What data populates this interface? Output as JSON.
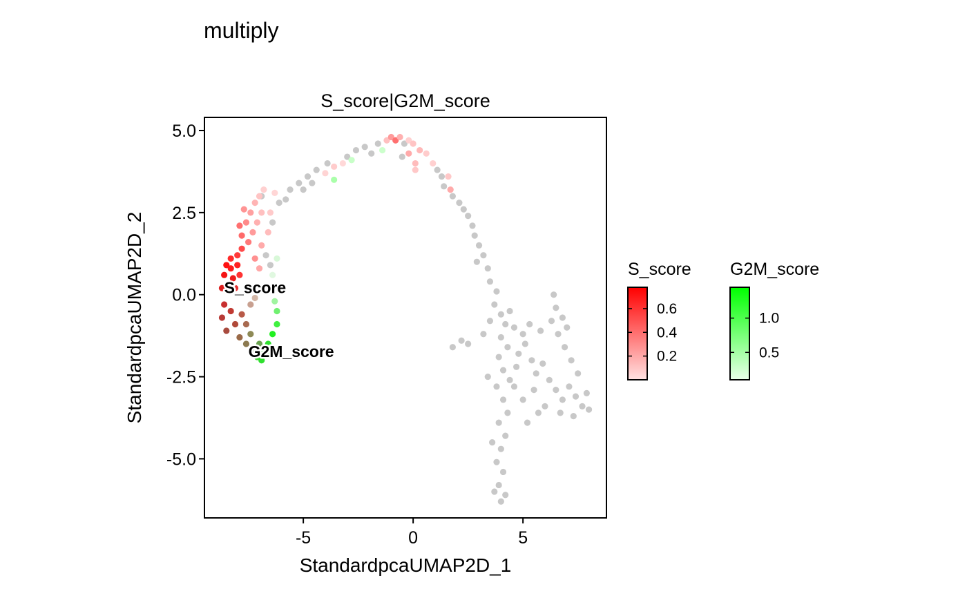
{
  "title": "multiply",
  "chart_data": {
    "type": "scatter",
    "panel_title": "S_score|G2M_score",
    "xlabel": "StandardpcaUMAP2D_1",
    "ylabel": "StandardpcaUMAP2D_2",
    "xlim": [
      -9.5,
      8.8
    ],
    "ylim": [
      -6.8,
      5.4
    ],
    "x_ticks": [
      -5,
      0,
      5
    ],
    "x_tick_labels": [
      "-5",
      "0",
      "5"
    ],
    "y_ticks": [
      5.0,
      2.5,
      0.0,
      -2.5,
      -5.0
    ],
    "y_tick_labels": [
      "5.0",
      "2.5",
      "0.0",
      "-2.5",
      "-5.0"
    ],
    "grid": false,
    "background_point_color": "#c8c8c8",
    "point_labels": [
      {
        "text": "S_score",
        "x": -8.6,
        "y": 0.05
      },
      {
        "text": "G2M_score",
        "x": -7.5,
        "y": -1.9
      }
    ],
    "legends": [
      {
        "title": "S_score",
        "color_high": "#ff0000",
        "color_low": "#ffe2e2",
        "range": [
          0.0,
          0.78
        ],
        "ticks": [
          0.2,
          0.4,
          0.6
        ],
        "tick_labels": [
          "0.2",
          "0.4",
          "0.6"
        ]
      },
      {
        "title": "G2M_score",
        "color_high": "#00ff00",
        "color_low": "#eaffea",
        "range": [
          0.1,
          1.45
        ],
        "ticks": [
          0.5,
          1.0
        ],
        "tick_labels": [
          "0.5",
          "1.0"
        ]
      }
    ],
    "legend_position": "right",
    "points": [
      {
        "x": -8.5,
        "y": 0.9,
        "c": "#ff1010"
      },
      {
        "x": -8.3,
        "y": 0.8,
        "c": "#ff1a1a"
      },
      {
        "x": -8.6,
        "y": 0.6,
        "c": "#f51515"
      },
      {
        "x": -8.2,
        "y": 0.5,
        "c": "#ee1c1c"
      },
      {
        "x": -8.0,
        "y": 0.9,
        "c": "#ff2222"
      },
      {
        "x": -8.4,
        "y": 0.3,
        "c": "#e82020"
      },
      {
        "x": -8.7,
        "y": 0.2,
        "c": "#dc2020"
      },
      {
        "x": -8.1,
        "y": 0.2,
        "c": "#e53030"
      },
      {
        "x": -7.9,
        "y": 0.6,
        "c": "#ff3333"
      },
      {
        "x": -8.3,
        "y": 1.1,
        "c": "#ff2a2a"
      },
      {
        "x": -8.0,
        "y": 1.2,
        "c": "#ff3a3a"
      },
      {
        "x": -7.8,
        "y": 1.4,
        "c": "#ff4a4a"
      },
      {
        "x": -8.6,
        "y": -0.3,
        "c": "#c83030"
      },
      {
        "x": -8.3,
        "y": -0.5,
        "c": "#c03a32"
      },
      {
        "x": -8.7,
        "y": -0.7,
        "c": "#b83a36"
      },
      {
        "x": -8.1,
        "y": -0.9,
        "c": "#b04a3a"
      },
      {
        "x": -8.5,
        "y": -1.1,
        "c": "#a84a3e"
      },
      {
        "x": -7.9,
        "y": -1.3,
        "c": "#9a6a48"
      },
      {
        "x": -7.6,
        "y": -1.5,
        "c": "#8c7a50"
      },
      {
        "x": -7.3,
        "y": -1.7,
        "c": "#7a8a50"
      },
      {
        "x": -7.8,
        "y": -0.6,
        "c": "#b85a48"
      },
      {
        "x": -7.6,
        "y": -0.9,
        "c": "#a86a50"
      },
      {
        "x": -7.4,
        "y": -1.2,
        "c": "#8e8a56"
      },
      {
        "x": -7.0,
        "y": -1.5,
        "c": "#6aa250"
      },
      {
        "x": -6.8,
        "y": -1.8,
        "c": "#3ec83a"
      },
      {
        "x": -6.6,
        "y": -1.5,
        "c": "#30e030"
      },
      {
        "x": -6.4,
        "y": -1.2,
        "c": "#22f022"
      },
      {
        "x": -6.2,
        "y": -0.9,
        "c": "#40f040"
      },
      {
        "x": -6.2,
        "y": -0.5,
        "c": "#70f070"
      },
      {
        "x": -6.3,
        "y": -0.2,
        "c": "#a0f4a0"
      },
      {
        "x": -7.1,
        "y": -1.9,
        "c": "#4ad23c"
      },
      {
        "x": -6.9,
        "y": -2.0,
        "c": "#2fe02f"
      },
      {
        "x": -6.5,
        "y": -1.8,
        "c": "#22ee22"
      },
      {
        "x": -7.4,
        "y": -0.3,
        "c": "#c8a090"
      },
      {
        "x": -7.0,
        "y": 0.2,
        "c": "#e0c8b8"
      },
      {
        "x": -7.2,
        "y": -0.1,
        "c": "#d4b8a8"
      },
      {
        "x": -7.8,
        "y": 1.8,
        "c": "#ff6a6a"
      },
      {
        "x": -7.6,
        "y": 2.2,
        "c": "#ff8a8a"
      },
      {
        "x": -7.4,
        "y": 2.5,
        "c": "#ffa0a0"
      },
      {
        "x": -7.2,
        "y": 2.8,
        "c": "#ffb4b4"
      },
      {
        "x": -7.0,
        "y": 3.0,
        "c": "#ffc4c4"
      },
      {
        "x": -6.8,
        "y": 3.2,
        "c": "#ffd0d0"
      },
      {
        "x": -7.5,
        "y": 1.6,
        "c": "#ff7a7a"
      },
      {
        "x": -7.3,
        "y": 1.9,
        "c": "#ff9a9a"
      },
      {
        "x": -7.1,
        "y": 2.2,
        "c": "#ffb0b0"
      },
      {
        "x": -6.9,
        "y": 2.5,
        "c": "#ffc0c0"
      },
      {
        "x": -7.2,
        "y": 1.1,
        "c": "#ff9090"
      },
      {
        "x": -6.9,
        "y": 1.5,
        "c": "#ffaaaa"
      },
      {
        "x": -6.6,
        "y": 1.9,
        "c": "#ffbcbc"
      },
      {
        "x": -6.5,
        "y": 2.5,
        "c": "#ffcaca"
      },
      {
        "x": -7.0,
        "y": 0.8,
        "c": "#ffa8a8"
      },
      {
        "x": -6.3,
        "y": 3.1,
        "c": "#ffd6d6"
      },
      {
        "x": -7.7,
        "y": 2.6,
        "c": "#ff9494"
      },
      {
        "x": -7.9,
        "y": 2.1,
        "c": "#ff7070"
      },
      {
        "x": -6.1,
        "y": 2.8,
        "c": "#c8c8c8"
      },
      {
        "x": -6.4,
        "y": 2.2,
        "c": "#c8c8c8"
      },
      {
        "x": -6.7,
        "y": 1.2,
        "c": "#c8c8c8"
      },
      {
        "x": -6.5,
        "y": 0.9,
        "c": "#c8c8c8"
      },
      {
        "x": -6.9,
        "y": 3.0,
        "c": "#c8c8c8"
      },
      {
        "x": -5.8,
        "y": 2.9,
        "c": "#c8c8c8"
      },
      {
        "x": -5.6,
        "y": 3.2,
        "c": "#c8c8c8"
      },
      {
        "x": -6.4,
        "y": 0.6,
        "c": "#e0f8e0"
      },
      {
        "x": -6.2,
        "y": 1.1,
        "c": "#d8f8d8"
      },
      {
        "x": -5.2,
        "y": 3.4,
        "c": "#c8c8c8"
      },
      {
        "x": -4.8,
        "y": 3.6,
        "c": "#c8c8c8"
      },
      {
        "x": -4.4,
        "y": 3.8,
        "c": "#c8c8c8"
      },
      {
        "x": -5.0,
        "y": 3.2,
        "c": "#c8c8c8"
      },
      {
        "x": -4.6,
        "y": 3.4,
        "c": "#c8c8c8"
      },
      {
        "x": -4.0,
        "y": 3.7,
        "c": "#ffd4d4"
      },
      {
        "x": -3.6,
        "y": 3.9,
        "c": "#ffcccc"
      },
      {
        "x": -3.2,
        "y": 4.0,
        "c": "#ffd8d8"
      },
      {
        "x": -3.6,
        "y": 3.5,
        "c": "#aaffaa"
      },
      {
        "x": -3.9,
        "y": 4.0,
        "c": "#c8c8c8"
      },
      {
        "x": -3.0,
        "y": 4.2,
        "c": "#c8c8c8"
      },
      {
        "x": -2.6,
        "y": 4.4,
        "c": "#c8c8c8"
      },
      {
        "x": -2.8,
        "y": 4.1,
        "c": "#c8ffc8"
      },
      {
        "x": -2.2,
        "y": 4.5,
        "c": "#c8c8c8"
      },
      {
        "x": -1.9,
        "y": 4.3,
        "c": "#c8c8c8"
      },
      {
        "x": -1.6,
        "y": 4.6,
        "c": "#c8c8c8"
      },
      {
        "x": -1.4,
        "y": 4.4,
        "c": "#ccffcc"
      },
      {
        "x": -1.2,
        "y": 4.7,
        "c": "#ffc0c0"
      },
      {
        "x": -1.0,
        "y": 4.8,
        "c": "#ff9a9a"
      },
      {
        "x": -0.8,
        "y": 4.7,
        "c": "#ff7070"
      },
      {
        "x": -0.6,
        "y": 4.8,
        "c": "#ffb0b0"
      },
      {
        "x": -0.4,
        "y": 4.6,
        "c": "#c8c8c8"
      },
      {
        "x": -0.2,
        "y": 4.7,
        "c": "#ffd0d0"
      },
      {
        "x": 0.0,
        "y": 4.6,
        "c": "#ffc4c4"
      },
      {
        "x": 0.3,
        "y": 4.4,
        "c": "#ffb8b8"
      },
      {
        "x": 0.6,
        "y": 4.3,
        "c": "#ffcccc"
      },
      {
        "x": -0.5,
        "y": 4.2,
        "c": "#c8c8c8"
      },
      {
        "x": -0.2,
        "y": 4.3,
        "c": "#ffaaaa"
      },
      {
        "x": 0.1,
        "y": 4.0,
        "c": "#ffbcbc"
      },
      {
        "x": 0.1,
        "y": 3.8,
        "c": "#ffc8c8"
      },
      {
        "x": 0.9,
        "y": 4.0,
        "c": "#ffd0d0"
      },
      {
        "x": 1.1,
        "y": 3.8,
        "c": "#c8c8c8"
      },
      {
        "x": 1.3,
        "y": 3.6,
        "c": "#c8c8c8"
      },
      {
        "x": 1.6,
        "y": 3.6,
        "c": "#ffc8c8"
      },
      {
        "x": 1.4,
        "y": 3.3,
        "c": "#c8c8c8"
      },
      {
        "x": 1.7,
        "y": 3.2,
        "c": "#ffaaaa"
      },
      {
        "x": 1.8,
        "y": 3.0,
        "c": "#c8c8c8"
      },
      {
        "x": 2.1,
        "y": 2.8,
        "c": "#c8c8c8"
      },
      {
        "x": 2.3,
        "y": 2.6,
        "c": "#c8c8c8"
      },
      {
        "x": 2.5,
        "y": 2.4,
        "c": "#c8c8c8"
      },
      {
        "x": 2.7,
        "y": 2.1,
        "c": "#c8c8c8"
      },
      {
        "x": 2.8,
        "y": 1.8,
        "c": "#c8c8c8"
      },
      {
        "x": 3.0,
        "y": 1.5,
        "c": "#c8c8c8"
      },
      {
        "x": 3.2,
        "y": 1.2,
        "c": "#c8c8c8"
      },
      {
        "x": 2.9,
        "y": 1.0,
        "c": "#c8c8c8"
      },
      {
        "x": 3.4,
        "y": 0.8,
        "c": "#c8c8c8"
      },
      {
        "x": 3.5,
        "y": 0.4,
        "c": "#c8c8c8"
      },
      {
        "x": 3.8,
        "y": 0.1,
        "c": "#c8c8c8"
      },
      {
        "x": 3.7,
        "y": -0.3,
        "c": "#c8c8c8"
      },
      {
        "x": 4.0,
        "y": -0.6,
        "c": "#c8c8c8"
      },
      {
        "x": 4.2,
        "y": -0.9,
        "c": "#c8c8c8"
      },
      {
        "x": 3.5,
        "y": -0.8,
        "c": "#c8c8c8"
      },
      {
        "x": 4.4,
        "y": -0.5,
        "c": "#c8c8c8"
      },
      {
        "x": 4.6,
        "y": -1.0,
        "c": "#c8c8c8"
      },
      {
        "x": 4.0,
        "y": -1.3,
        "c": "#c8c8c8"
      },
      {
        "x": 4.3,
        "y": -1.6,
        "c": "#c8c8c8"
      },
      {
        "x": 3.9,
        "y": -1.9,
        "c": "#c8c8c8"
      },
      {
        "x": 4.1,
        "y": -2.3,
        "c": "#c8c8c8"
      },
      {
        "x": 4.4,
        "y": -2.6,
        "c": "#c8c8c8"
      },
      {
        "x": 3.8,
        "y": -2.8,
        "c": "#c8c8c8"
      },
      {
        "x": 4.1,
        "y": -3.2,
        "c": "#c8c8c8"
      },
      {
        "x": 4.3,
        "y": -3.6,
        "c": "#c8c8c8"
      },
      {
        "x": 3.9,
        "y": -3.9,
        "c": "#c8c8c8"
      },
      {
        "x": 4.2,
        "y": -4.3,
        "c": "#c8c8c8"
      },
      {
        "x": 4.0,
        "y": -4.7,
        "c": "#c8c8c8"
      },
      {
        "x": 3.8,
        "y": -5.1,
        "c": "#c8c8c8"
      },
      {
        "x": 4.1,
        "y": -5.4,
        "c": "#c8c8c8"
      },
      {
        "x": 3.9,
        "y": -5.8,
        "c": "#c8c8c8"
      },
      {
        "x": 4.2,
        "y": -6.1,
        "c": "#c8c8c8"
      },
      {
        "x": 3.7,
        "y": -6.0,
        "c": "#c8c8c8"
      },
      {
        "x": 4.0,
        "y": -6.3,
        "c": "#c8c8c8"
      },
      {
        "x": 3.6,
        "y": -4.5,
        "c": "#c8c8c8"
      },
      {
        "x": 3.4,
        "y": -2.5,
        "c": "#c8c8c8"
      },
      {
        "x": 3.2,
        "y": -1.2,
        "c": "#c8c8c8"
      },
      {
        "x": 2.5,
        "y": -1.5,
        "c": "#c8c8c8"
      },
      {
        "x": 1.8,
        "y": -1.6,
        "c": "#c8c8c8"
      },
      {
        "x": 2.2,
        "y": -1.4,
        "c": "#c8c8c8"
      },
      {
        "x": 4.8,
        "y": -1.8,
        "c": "#c8c8c8"
      },
      {
        "x": 5.1,
        "y": -1.5,
        "c": "#c8c8c8"
      },
      {
        "x": 5.4,
        "y": -2.0,
        "c": "#c8c8c8"
      },
      {
        "x": 5.6,
        "y": -2.4,
        "c": "#c8c8c8"
      },
      {
        "x": 5.9,
        "y": -2.1,
        "c": "#c8c8c8"
      },
      {
        "x": 6.2,
        "y": -2.6,
        "c": "#c8c8c8"
      },
      {
        "x": 6.5,
        "y": -2.9,
        "c": "#c8c8c8"
      },
      {
        "x": 6.8,
        "y": -3.2,
        "c": "#c8c8c8"
      },
      {
        "x": 7.1,
        "y": -2.8,
        "c": "#c8c8c8"
      },
      {
        "x": 7.4,
        "y": -3.1,
        "c": "#c8c8c8"
      },
      {
        "x": 7.7,
        "y": -3.4,
        "c": "#c8c8c8"
      },
      {
        "x": 7.9,
        "y": -3.0,
        "c": "#c8c8c8"
      },
      {
        "x": 8.0,
        "y": -3.5,
        "c": "#c8c8c8"
      },
      {
        "x": 7.5,
        "y": -2.4,
        "c": "#c8c8c8"
      },
      {
        "x": 7.2,
        "y": -2.0,
        "c": "#c8c8c8"
      },
      {
        "x": 6.9,
        "y": -1.6,
        "c": "#c8c8c8"
      },
      {
        "x": 6.6,
        "y": -1.2,
        "c": "#c8c8c8"
      },
      {
        "x": 6.3,
        "y": -0.8,
        "c": "#c8c8c8"
      },
      {
        "x": 6.5,
        "y": -0.4,
        "c": "#c8c8c8"
      },
      {
        "x": 6.4,
        "y": 0.0,
        "c": "#c8c8c8"
      },
      {
        "x": 6.8,
        "y": -0.7,
        "c": "#c8c8c8"
      },
      {
        "x": 7.0,
        "y": -1.0,
        "c": "#c8c8c8"
      },
      {
        "x": 5.8,
        "y": -1.1,
        "c": "#c8c8c8"
      },
      {
        "x": 5.3,
        "y": -0.9,
        "c": "#c8c8c8"
      },
      {
        "x": 5.0,
        "y": -3.2,
        "c": "#c8c8c8"
      },
      {
        "x": 5.7,
        "y": -3.6,
        "c": "#c8c8c8"
      },
      {
        "x": 5.2,
        "y": -3.9,
        "c": "#c8c8c8"
      },
      {
        "x": 6.0,
        "y": -3.4,
        "c": "#c8c8c8"
      },
      {
        "x": 4.6,
        "y": -2.8,
        "c": "#c8c8c8"
      },
      {
        "x": 6.7,
        "y": -3.6,
        "c": "#c8c8c8"
      },
      {
        "x": 7.3,
        "y": -3.7,
        "c": "#c8c8c8"
      },
      {
        "x": 5.5,
        "y": -2.9,
        "c": "#c8c8c8"
      },
      {
        "x": 4.7,
        "y": -2.2,
        "c": "#c8c8c8"
      },
      {
        "x": 5.0,
        "y": -1.2,
        "c": "#c8c8c8"
      }
    ]
  }
}
